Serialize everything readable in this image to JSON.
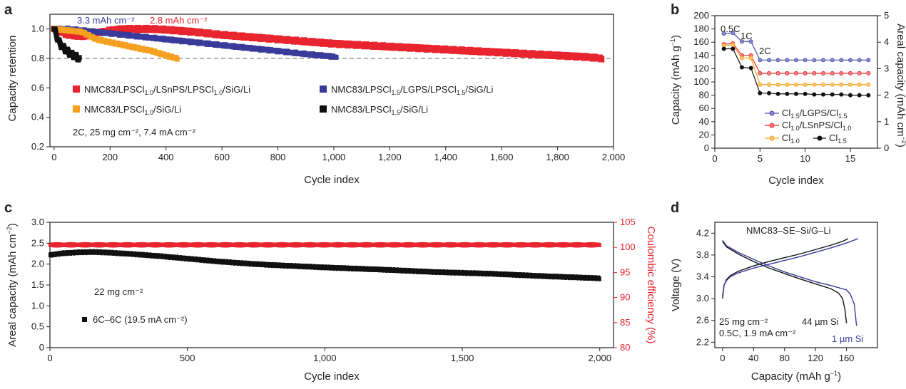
{
  "chart_data": [
    {
      "panel": "a",
      "type": "scatter",
      "xlabel": "Cycle index",
      "ylabel": "Capacity retention",
      "xlim": [
        0,
        2000
      ],
      "ylim": [
        0.2,
        1.1
      ],
      "xticks": [
        "0",
        "200",
        "400",
        "600",
        "800",
        "1,000",
        "1,200",
        "1,400",
        "1,600",
        "1,800",
        "2,000"
      ],
      "yticks": [
        "0.2",
        "0.4",
        "0.6",
        "0.8",
        "1.0"
      ],
      "reference_line": {
        "y": 0.8,
        "style": "dashed"
      },
      "annotations": {
        "blue_capacity": "3.3 mAh cm⁻²",
        "red_capacity": "2.8 mAh cm⁻²",
        "conditions": "2C, 25 mg cm⁻², 7.4 mA cm⁻²"
      },
      "legend_placement": "bottom",
      "series": [
        {
          "name": "NMC83/LPSCl1.0/LSnPS/LPSCl1.0/SiG/Li",
          "color": "#e8242e",
          "x": [
            0,
            50,
            100,
            150,
            200,
            250,
            300,
            350,
            400,
            500,
            600,
            800,
            1000,
            1200,
            1400,
            1600,
            1800,
            1900,
            1960
          ],
          "y": [
            1.0,
            0.96,
            0.95,
            0.97,
            0.99,
            1.0,
            1.0,
            1.0,
            0.995,
            0.98,
            0.96,
            0.93,
            0.9,
            0.88,
            0.86,
            0.84,
            0.82,
            0.81,
            0.8
          ]
        },
        {
          "name": "NMC83/LPSCl1.5/LGPS/LPSCl1.5/SiG/Li",
          "color": "#3a3a9a",
          "x": [
            0,
            50,
            100,
            200,
            300,
            400,
            500,
            600,
            700,
            800,
            900,
            1010
          ],
          "y": [
            1.0,
            1.0,
            0.99,
            0.97,
            0.95,
            0.93,
            0.91,
            0.89,
            0.87,
            0.85,
            0.83,
            0.81
          ]
        },
        {
          "name": "NMC83/LPSCl1.0/SiG/Li",
          "color": "#f5a020",
          "x": [
            0,
            50,
            100,
            150,
            200,
            250,
            300,
            350,
            400,
            440
          ],
          "y": [
            1.0,
            0.99,
            0.98,
            0.93,
            0.91,
            0.89,
            0.87,
            0.85,
            0.82,
            0.8
          ]
        },
        {
          "name": "NMC83/LPSCl1.5/SiG/Li",
          "color": "#111111",
          "x": [
            0,
            10,
            20,
            40,
            60,
            80,
            90
          ],
          "y": [
            1.0,
            0.95,
            0.9,
            0.86,
            0.83,
            0.81,
            0.8
          ]
        }
      ]
    },
    {
      "panel": "b",
      "type": "line",
      "xlabel": "Cycle index",
      "ylabel": "Capacity (mAh g⁻¹)",
      "y2label": "Areal capacity (mAh cm⁻²)",
      "xlim": [
        0,
        18
      ],
      "ylim": [
        0,
        200
      ],
      "y2lim": [
        0,
        5
      ],
      "xticks": [
        "0",
        "5",
        "10",
        "15"
      ],
      "yticks": [
        "0",
        "20",
        "40",
        "60",
        "80",
        "100",
        "120",
        "140",
        "160",
        "180",
        "200"
      ],
      "y2ticks": [
        "0",
        "1",
        "2",
        "3",
        "4",
        "5"
      ],
      "rate_labels": [
        "0.5C",
        "1C",
        "2C"
      ],
      "legend_placement": "bottom-right",
      "series": [
        {
          "name": "Cl1.5/LGPS/Cl1.5",
          "color": "#4a4aa8",
          "x": [
            1,
            2,
            3,
            4,
            5,
            6,
            7,
            8,
            9,
            10,
            11,
            12,
            13,
            14,
            15,
            16,
            17
          ],
          "y": [
            173,
            174,
            161,
            161,
            133,
            133,
            133,
            133,
            133,
            133,
            133,
            133,
            133,
            133,
            133,
            133,
            133
          ]
        },
        {
          "name": "Cl1.0/LSnPS/Cl1.0",
          "color": "#e8242e",
          "x": [
            1,
            2,
            3,
            4,
            5,
            6,
            7,
            8,
            9,
            10,
            11,
            12,
            13,
            14,
            15,
            16,
            17
          ],
          "y": [
            157,
            158,
            140,
            140,
            113,
            113,
            113,
            113,
            113,
            113,
            113,
            113,
            113,
            113,
            113,
            113,
            113
          ]
        },
        {
          "name": "Cl1.0",
          "color": "#f5a020",
          "x": [
            1,
            2,
            3,
            4,
            5,
            6,
            7,
            8,
            9,
            10,
            11,
            12,
            13,
            14,
            15,
            16,
            17
          ],
          "y": [
            155,
            156,
            136,
            136,
            96,
            96,
            96,
            96,
            96,
            96,
            96,
            96,
            96,
            96,
            96,
            96,
            96
          ]
        },
        {
          "name": "Cl1.5",
          "color": "#111111",
          "x": [
            1,
            2,
            3,
            4,
            5,
            6,
            7,
            8,
            9,
            10,
            11,
            12,
            13,
            14,
            15,
            16,
            17
          ],
          "y": [
            150,
            150,
            122,
            121,
            83,
            83,
            82,
            82,
            82,
            82,
            81,
            81,
            81,
            81,
            80,
            80,
            80
          ]
        }
      ]
    },
    {
      "panel": "c",
      "type": "scatter",
      "xlabel": "Cycle index",
      "ylabel": "Areal capacity (mAh cm⁻²)",
      "y2label": "Coulombic efficiency (%)",
      "xlim": [
        0,
        2050
      ],
      "ylim": [
        0,
        3.0
      ],
      "y2lim": [
        80,
        105
      ],
      "xticks": [
        "0",
        "500",
        "1,000",
        "1,500",
        "2,000"
      ],
      "yticks": [
        "0",
        "0.5",
        "1.0",
        "1.5",
        "2.0",
        "2.5",
        "3.0"
      ],
      "y2ticks": [
        "80",
        "85",
        "90",
        "95",
        "100",
        "105"
      ],
      "annotations": {
        "loading": "22 mg cm⁻²",
        "legend": "6C–6C (19.5 mA cm⁻²)"
      },
      "series": [
        {
          "name": "Areal capacity",
          "color": "#111111",
          "x": [
            0,
            50,
            100,
            150,
            200,
            300,
            400,
            500,
            600,
            700,
            800,
            1000,
            1200,
            1400,
            1600,
            1800,
            2000
          ],
          "y": [
            2.22,
            2.26,
            2.28,
            2.29,
            2.28,
            2.24,
            2.19,
            2.13,
            2.07,
            2.02,
            1.98,
            1.92,
            1.87,
            1.81,
            1.77,
            1.71,
            1.66
          ]
        },
        {
          "name": "Coulombic efficiency",
          "color": "#e8242e",
          "axis": "y2",
          "x": [
            0,
            2000
          ],
          "y": [
            100.5,
            100.5
          ]
        }
      ]
    },
    {
      "panel": "d",
      "type": "line",
      "xlabel": "Capacity (mAh g⁻¹)",
      "ylabel": "Voltage (V)",
      "xlim": [
        -10,
        200
      ],
      "ylim": [
        2.1,
        4.4
      ],
      "xticks": [
        "0",
        "40",
        "80",
        "120",
        "160"
      ],
      "yticks": [
        "2.2",
        "2.6",
        "3.0",
        "3.4",
        "3.8",
        "4.2"
      ],
      "title": "NMC83–SE–Si/G–Li",
      "annotations": {
        "loading": "25 mg cm⁻²",
        "rate": "0.5C, 1.9 mA cm⁻²",
        "label_black": "44 µm Si",
        "label_blue": "1 µm Si"
      },
      "series": [
        {
          "name": "44 µm Si charge",
          "color": "#111111",
          "x": [
            0,
            2,
            5,
            10,
            20,
            40,
            60,
            80,
            100,
            120,
            140,
            155,
            162
          ],
          "y": [
            3.0,
            3.25,
            3.35,
            3.42,
            3.5,
            3.6,
            3.68,
            3.75,
            3.82,
            3.9,
            3.98,
            4.05,
            4.1
          ]
        },
        {
          "name": "44 µm Si discharge",
          "color": "#111111",
          "x": [
            0,
            5,
            20,
            40,
            60,
            80,
            100,
            120,
            140,
            150,
            155,
            158,
            160
          ],
          "y": [
            4.05,
            3.95,
            3.82,
            3.68,
            3.56,
            3.46,
            3.36,
            3.27,
            3.18,
            3.1,
            3.0,
            2.8,
            2.55
          ]
        },
        {
          "name": "1 µm Si charge",
          "color": "#3a3a9a",
          "x": [
            0,
            2,
            5,
            10,
            20,
            40,
            60,
            80,
            100,
            120,
            140,
            160,
            175
          ],
          "y": [
            3.05,
            3.25,
            3.33,
            3.4,
            3.47,
            3.56,
            3.63,
            3.7,
            3.77,
            3.85,
            3.93,
            4.02,
            4.1
          ]
        },
        {
          "name": "1 µm Si discharge",
          "color": "#3a3a9a",
          "x": [
            0,
            5,
            20,
            40,
            60,
            80,
            100,
            120,
            140,
            160,
            165,
            170,
            173
          ],
          "y": [
            4.07,
            3.97,
            3.85,
            3.72,
            3.6,
            3.49,
            3.4,
            3.31,
            3.24,
            3.16,
            3.08,
            2.9,
            2.5
          ]
        }
      ]
    }
  ]
}
